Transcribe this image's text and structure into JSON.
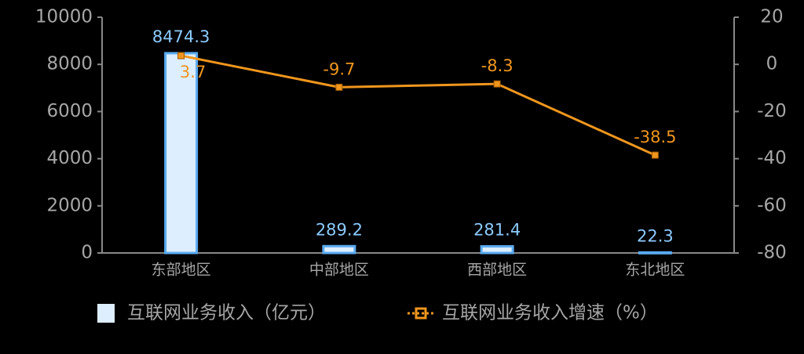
{
  "chart_data": {
    "type": "bar",
    "categories": [
      "东部地区",
      "中部地区",
      "西部地区",
      "东北地区"
    ],
    "series": [
      {
        "name": "互联网业务收入（亿元）",
        "type": "bar",
        "color": "#ddeeff",
        "stroke": "#5aaaf0",
        "label_color": "#8ccaff",
        "values": [
          8474.3,
          289.2,
          281.4,
          22.3
        ]
      },
      {
        "name": "互联网业务收入增速（%）",
        "type": "line",
        "axis": "y2",
        "color": "#f0961e",
        "values": [
          3.7,
          -9.7,
          -8.3,
          -38.5
        ]
      }
    ],
    "ylim": [
      0,
      10000
    ],
    "yticks": [
      0,
      2000,
      4000,
      6000,
      8000,
      10000
    ],
    "y2lim": [
      -80,
      20
    ],
    "y2ticks": [
      -80,
      -60,
      -40,
      -20,
      0,
      20
    ]
  }
}
